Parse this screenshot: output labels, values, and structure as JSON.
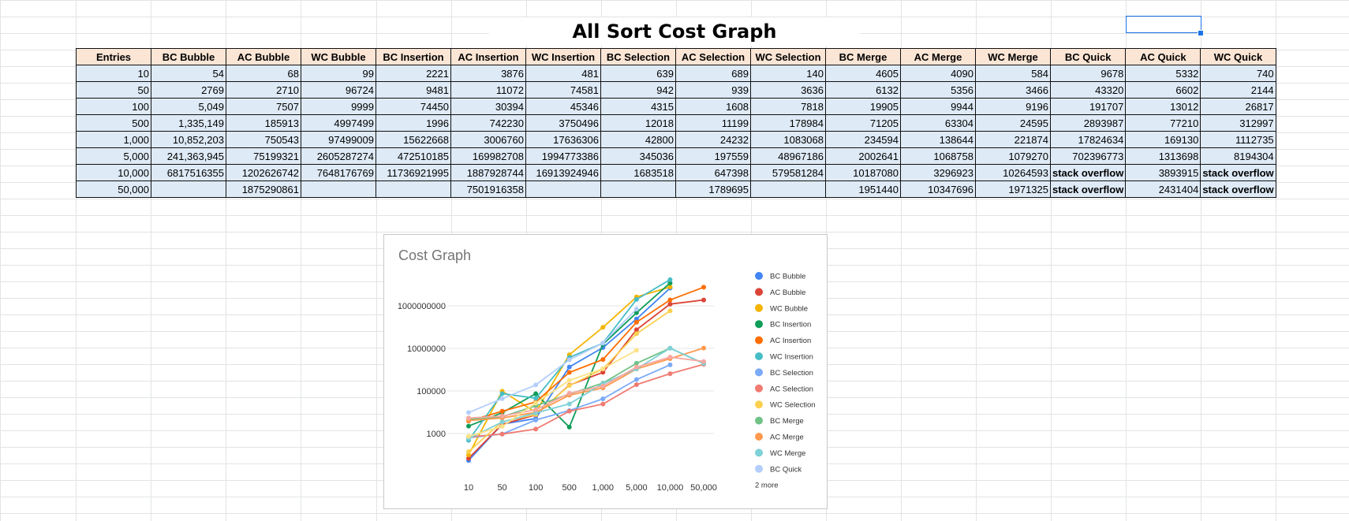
{
  "sheet": {
    "title": "All Sort Cost Graph",
    "headers": [
      "Entries",
      "BC Bubble",
      "AC Bubble",
      "WC Bubble",
      "BC Insertion",
      "AC Insertion",
      "WC Insertion",
      "BC Selection",
      "AC Selection",
      "WC Selection",
      "BC Merge",
      "AC Merge",
      "WC Merge",
      "BC Quick",
      "AC Quick",
      "WC Quick"
    ],
    "rows": [
      [
        "10",
        "54",
        "68",
        "99",
        "2221",
        "3876",
        "481",
        "639",
        "689",
        "140",
        "4605",
        "4090",
        "584",
        "9678",
        "5332",
        "740"
      ],
      [
        "50",
        "2769",
        "2710",
        "96724",
        "9481",
        "11072",
        "74581",
        "942",
        "939",
        "3636",
        "6132",
        "5356",
        "3466",
        "43320",
        "6602",
        "2144"
      ],
      [
        "100",
        "5,049",
        "7507",
        "9999",
        "74450",
        "30394",
        "45346",
        "4315",
        "1608",
        "7818",
        "19905",
        "9944",
        "9196",
        "191707",
        "13012",
        "26817"
      ],
      [
        "500",
        "1,335,149",
        "185913",
        "4997499",
        "1996",
        "742230",
        "3750496",
        "12018",
        "11199",
        "178984",
        "71205",
        "63304",
        "24595",
        "2893987",
        "77210",
        "312997"
      ],
      [
        "1,000",
        "10,852,203",
        "750543",
        "97499009",
        "15622668",
        "3006760",
        "17636306",
        "42800",
        "24232",
        "1083068",
        "234594",
        "138644",
        "221874",
        "17824634",
        "169130",
        "1112735"
      ],
      [
        "5,000",
        "241,363,945",
        "75199321",
        "2605287274",
        "472510185",
        "169982708",
        "1994773386",
        "345036",
        "197559",
        "48967186",
        "2002641",
        "1068758",
        "1079270",
        "702396773",
        "1313698",
        "8194304"
      ],
      [
        "10,000",
        "6817516355",
        "1202626742",
        "7648176769",
        "11736921995",
        "1887928744",
        "16913924946",
        "1683518",
        "647398",
        "579581284",
        "10187080",
        "3296923",
        "10264593",
        "stack overflow",
        "3893915",
        "stack overflow"
      ],
      [
        "50,000",
        "",
        "1875290861",
        "",
        "",
        "7501916358",
        "",
        "",
        "1789695",
        "",
        "1951440",
        "10347696",
        "1971325",
        "stack overflow",
        "2431404",
        "stack overflow"
      ]
    ]
  },
  "chart_data": {
    "type": "line",
    "title": "Cost Graph",
    "scale": "log",
    "categories": [
      "10",
      "50",
      "100",
      "500",
      "1,000",
      "5,000",
      "10,000",
      "50,000"
    ],
    "y_ticks": [
      1000,
      100000,
      10000000,
      1000000000
    ],
    "y_tick_labels": [
      "1000",
      "100000",
      "10000000",
      "1000000000"
    ],
    "legend_position": "right",
    "more_label": "2 more",
    "series": [
      {
        "name": "BC Bubble",
        "color": "#4285f4",
        "in_legend": true,
        "values": [
          54,
          2769,
          5049,
          1335149,
          10852203,
          241363945,
          6817516355,
          null
        ]
      },
      {
        "name": "AC Bubble",
        "color": "#db4437",
        "in_legend": true,
        "values": [
          68,
          2710,
          7507,
          185913,
          750543,
          75199321,
          1202626742,
          1875290861
        ]
      },
      {
        "name": "WC Bubble",
        "color": "#f4b400",
        "in_legend": true,
        "values": [
          99,
          96724,
          9999,
          4997499,
          97499009,
          2605287274,
          7648176769,
          null
        ]
      },
      {
        "name": "BC Insertion",
        "color": "#0f9d58",
        "in_legend": true,
        "values": [
          2221,
          9481,
          74450,
          1996,
          15622668,
          472510185,
          11736921995,
          null
        ]
      },
      {
        "name": "AC Insertion",
        "color": "#ff6d01",
        "in_legend": true,
        "values": [
          3876,
          11072,
          30394,
          742230,
          3006760,
          169982708,
          1887928744,
          7501916358
        ]
      },
      {
        "name": "WC Insertion",
        "color": "#46bdc6",
        "in_legend": true,
        "values": [
          481,
          74581,
          45346,
          3750496,
          17636306,
          1994773386,
          16913924946,
          null
        ]
      },
      {
        "name": "BC Selection",
        "color": "#7baaf7",
        "in_legend": true,
        "values": [
          639,
          942,
          4315,
          12018,
          42800,
          345036,
          1683518,
          null
        ]
      },
      {
        "name": "AC Selection",
        "color": "#f07b72",
        "in_legend": true,
        "values": [
          689,
          939,
          1608,
          11199,
          24232,
          197559,
          647398,
          1789695
        ]
      },
      {
        "name": "WC Selection",
        "color": "#fcd04f",
        "in_legend": true,
        "values": [
          140,
          3636,
          7818,
          178984,
          1083068,
          48967186,
          579581284,
          null
        ]
      },
      {
        "name": "BC Merge",
        "color": "#71c287",
        "in_legend": true,
        "values": [
          4605,
          6132,
          19905,
          71205,
          234594,
          2002641,
          10187080,
          1951440
        ]
      },
      {
        "name": "AC Merge",
        "color": "#ff994d",
        "in_legend": true,
        "values": [
          4090,
          5356,
          9944,
          63304,
          138644,
          1068758,
          3296923,
          10347696
        ]
      },
      {
        "name": "WC Merge",
        "color": "#7ed1d7",
        "in_legend": true,
        "values": [
          584,
          3466,
          9196,
          24595,
          221874,
          1079270,
          10264593,
          1971325
        ]
      },
      {
        "name": "BC Quick",
        "color": "#b3cefb",
        "in_legend": true,
        "values": [
          9678,
          43320,
          191707,
          2893987,
          17824634,
          702396773,
          null,
          null
        ]
      },
      {
        "name": "",
        "color": "#f7a7a0",
        "in_legend": false,
        "values": [
          5332,
          6602,
          13012,
          77210,
          169130,
          1313698,
          3893915,
          2431404
        ]
      },
      {
        "name": "",
        "color": "#fde288",
        "in_legend": false,
        "values": [
          740,
          2144,
          26817,
          312997,
          1112735,
          8194304,
          null,
          null
        ]
      }
    ]
  }
}
